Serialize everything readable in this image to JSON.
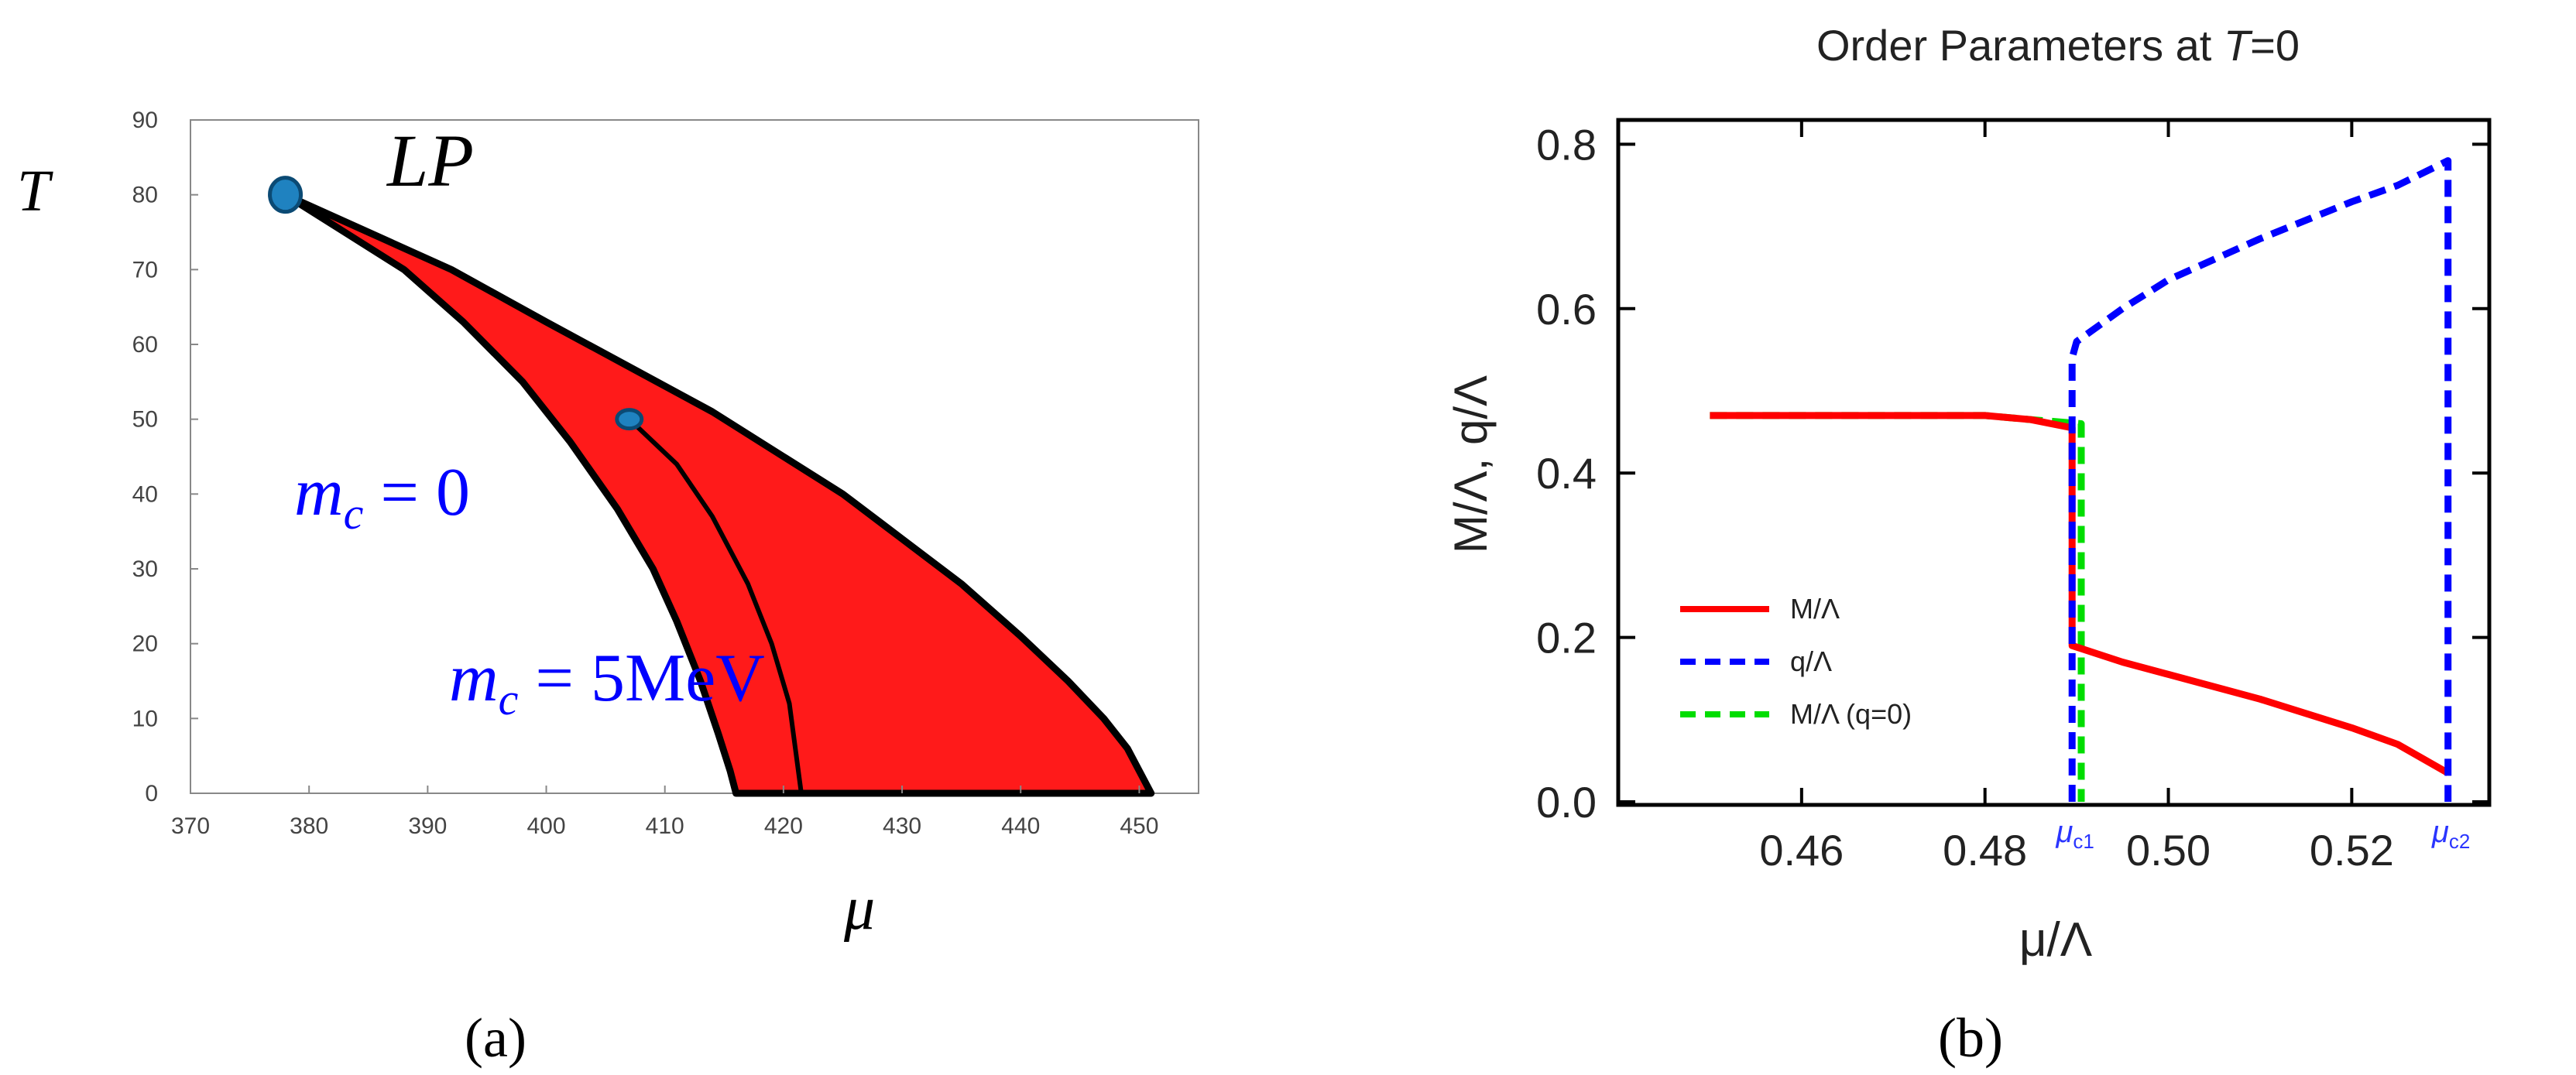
{
  "chart_data": [
    {
      "panel": "a",
      "type": "area",
      "caption": "(a)",
      "xlabel": "μ",
      "ylabel": "T",
      "xlim": [
        370,
        455
      ],
      "ylim": [
        0,
        90
      ],
      "xticks": [
        370,
        380,
        390,
        400,
        410,
        420,
        430,
        440,
        450
      ],
      "yticks": [
        0,
        10,
        20,
        30,
        40,
        50,
        60,
        70,
        80,
        90
      ],
      "annotations": {
        "lp_label": "LP",
        "mc0_sym": "m",
        "mc0_sub": "c",
        "mc0_rest": " = 0",
        "mc5_sym": "m",
        "mc5_sub": "c",
        "mc5_rest": " = 5MeV"
      },
      "points": [
        {
          "name": "LP",
          "x": 378,
          "y": 80
        },
        {
          "name": "mc=5MeV endpoint",
          "x": 407,
          "y": 50
        }
      ],
      "region": {
        "color": "#ff1a1a",
        "left_boundary": [
          [
            378,
            80
          ],
          [
            383,
            75
          ],
          [
            388,
            70
          ],
          [
            393,
            63
          ],
          [
            398,
            55
          ],
          [
            402,
            47
          ],
          [
            406,
            38
          ],
          [
            409,
            30
          ],
          [
            411,
            23
          ],
          [
            413,
            15
          ],
          [
            414.5,
            8
          ],
          [
            415.5,
            3
          ],
          [
            416,
            0
          ]
        ],
        "right_boundary": [
          [
            378,
            80
          ],
          [
            385,
            75
          ],
          [
            392,
            70
          ],
          [
            400,
            63
          ],
          [
            407,
            57
          ],
          [
            414,
            51
          ],
          [
            420,
            45
          ],
          [
            425,
            40
          ],
          [
            430,
            34
          ],
          [
            435,
            28
          ],
          [
            440,
            21
          ],
          [
            444,
            15
          ],
          [
            447,
            10
          ],
          [
            449,
            6
          ],
          [
            450,
            3
          ],
          [
            451,
            0
          ]
        ],
        "inner_line": [
          [
            407,
            50
          ],
          [
            411,
            44
          ],
          [
            414,
            37
          ],
          [
            417,
            28
          ],
          [
            419,
            20
          ],
          [
            420.5,
            12
          ],
          [
            421,
            6
          ],
          [
            421.5,
            0
          ]
        ]
      }
    },
    {
      "panel": "b",
      "type": "line",
      "caption": "(b)",
      "title_pre": "Order Parameters at ",
      "title_var": "T",
      "title_post": "=0",
      "xlabel": "μ/Λ",
      "ylabel": "M/Λ,  q/Λ",
      "xlim": [
        0.44,
        0.535
      ],
      "ylim": [
        0,
        0.8
      ],
      "xticks": [
        0.46,
        0.48,
        0.5,
        0.52
      ],
      "xtick_labels": [
        "0.46",
        "0.48",
        "0.50",
        "0.52"
      ],
      "yticks": [
        0.0,
        0.2,
        0.4,
        0.6,
        0.8
      ],
      "ytick_labels": [
        "0.0",
        "0.2",
        "0.4",
        "0.6",
        "0.8"
      ],
      "critical_points": [
        {
          "label": "μc1",
          "x": 0.4895
        },
        {
          "label": "μc2",
          "x": 0.5305
        }
      ],
      "legend": [
        "M/Λ",
        "q/Λ",
        "M/Λ (q=0)"
      ],
      "series": [
        {
          "name": "M/Λ",
          "color": "#ff0000",
          "dash": "solid",
          "x": [
            0.45,
            0.46,
            0.47,
            0.48,
            0.485,
            0.4895,
            0.4895,
            0.495,
            0.5,
            0.51,
            0.52,
            0.525,
            0.5305
          ],
          "y": [
            0.47,
            0.47,
            0.47,
            0.47,
            0.465,
            0.455,
            0.19,
            0.17,
            0.155,
            0.125,
            0.09,
            0.07,
            0.035
          ]
        },
        {
          "name": "q/Λ",
          "color": "#0000ff",
          "dash": "dashed",
          "x": [
            0.4895,
            0.4895,
            0.49,
            0.495,
            0.5,
            0.51,
            0.52,
            0.525,
            0.5305,
            0.5305
          ],
          "y": [
            0.0,
            0.54,
            0.56,
            0.6,
            0.635,
            0.685,
            0.73,
            0.75,
            0.78,
            0.0
          ]
        },
        {
          "name": "M/Λ (q=0)",
          "color": "#00dd00",
          "dash": "dashed",
          "x": [
            0.45,
            0.46,
            0.47,
            0.48,
            0.485,
            0.4905,
            0.4905,
            0.4905
          ],
          "y": [
            0.47,
            0.47,
            0.47,
            0.47,
            0.465,
            0.46,
            0.18,
            0.0
          ]
        }
      ]
    }
  ]
}
